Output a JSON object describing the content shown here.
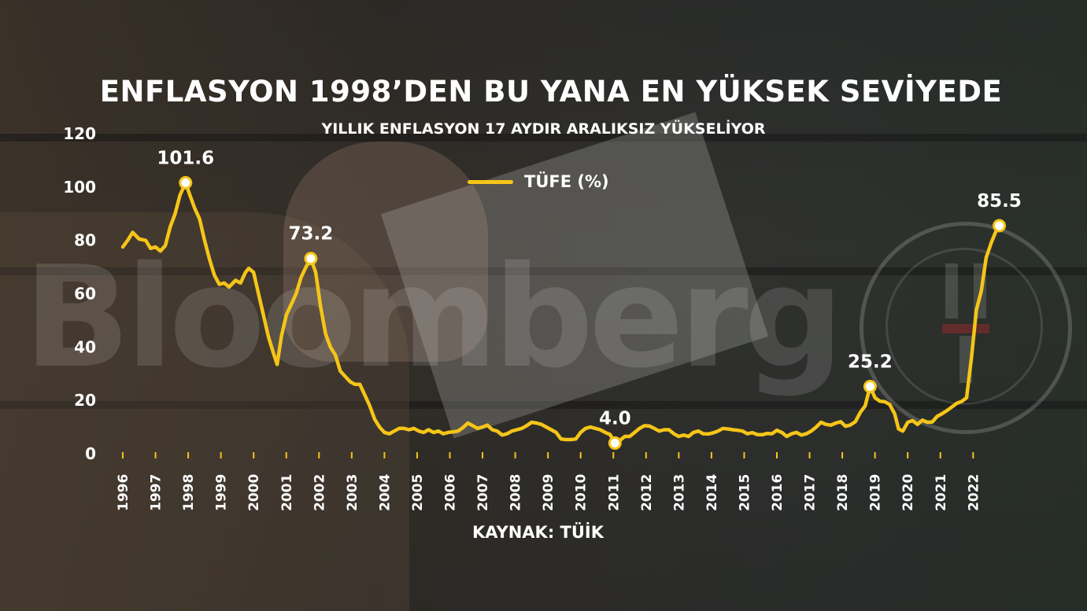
{
  "header": {
    "title": "ENFLASYON 1998’DEN BU YANA EN YÜKSEK SEVİYEDE",
    "subtitle": "YILLIK ENFLASYON 17 AYDIR ARALIKSIZ YÜKSELİYOR"
  },
  "footer": {
    "source": "KAYNAK: TÜİK"
  },
  "watermarks": {
    "bloomberg": "Bloomberg",
    "ht": "HT"
  },
  "colors": {
    "line": "#f5c518",
    "text": "#ffffff"
  },
  "chart_data": {
    "type": "line",
    "ylim": [
      0,
      120
    ],
    "yticks": [
      0,
      20,
      40,
      60,
      80,
      100,
      120
    ],
    "xticks": [
      "1996",
      "1997",
      "1998",
      "1999",
      "2000",
      "2001",
      "2002",
      "2003",
      "2004",
      "2005",
      "2006",
      "2007",
      "2008",
      "2009",
      "2010",
      "2011",
      "2012",
      "2013",
      "2014",
      "2015",
      "2016",
      "2017",
      "2018",
      "2019",
      "2020",
      "2021",
      "2022"
    ],
    "legend": {
      "position": "top-center"
    },
    "series": [
      {
        "name": "TÜFE (%)",
        "points": [
          [
            1996.0,
            77.5
          ],
          [
            1996.15,
            80
          ],
          [
            1996.3,
            83
          ],
          [
            1996.5,
            80.5
          ],
          [
            1996.7,
            80
          ],
          [
            1996.85,
            77
          ],
          [
            1997.0,
            77.5
          ],
          [
            1997.15,
            76
          ],
          [
            1997.3,
            78
          ],
          [
            1997.45,
            85
          ],
          [
            1997.6,
            90
          ],
          [
            1997.75,
            97
          ],
          [
            1997.92,
            101.6
          ],
          [
            1998.05,
            97
          ],
          [
            1998.2,
            92
          ],
          [
            1998.35,
            88
          ],
          [
            1998.5,
            80
          ],
          [
            1998.65,
            73
          ],
          [
            1998.8,
            67
          ],
          [
            1998.95,
            63.5
          ],
          [
            1999.1,
            64
          ],
          [
            1999.25,
            62.5
          ],
          [
            1999.45,
            65
          ],
          [
            1999.6,
            64
          ],
          [
            1999.75,
            68
          ],
          [
            1999.85,
            69.5
          ],
          [
            2000.0,
            68
          ],
          [
            2000.15,
            60
          ],
          [
            2000.3,
            52
          ],
          [
            2000.45,
            44
          ],
          [
            2000.6,
            38
          ],
          [
            2000.72,
            33.5
          ],
          [
            2000.85,
            44
          ],
          [
            2001.0,
            52
          ],
          [
            2001.15,
            56
          ],
          [
            2001.3,
            60
          ],
          [
            2001.45,
            66
          ],
          [
            2001.6,
            70
          ],
          [
            2001.75,
            73.2
          ],
          [
            2001.9,
            68
          ],
          [
            2002.05,
            55
          ],
          [
            2002.2,
            45
          ],
          [
            2002.35,
            40
          ],
          [
            2002.5,
            37
          ],
          [
            2002.65,
            31
          ],
          [
            2002.8,
            29
          ],
          [
            2002.95,
            27
          ],
          [
            2003.1,
            26
          ],
          [
            2003.25,
            26
          ],
          [
            2003.4,
            22
          ],
          [
            2003.55,
            18
          ],
          [
            2003.7,
            13
          ],
          [
            2003.85,
            10
          ],
          [
            2004.0,
            8
          ],
          [
            2004.15,
            7.5
          ],
          [
            2004.3,
            8.5
          ],
          [
            2004.45,
            9.5
          ],
          [
            2004.6,
            9.5
          ],
          [
            2004.75,
            9
          ],
          [
            2004.9,
            9.5
          ],
          [
            2005.05,
            8.5
          ],
          [
            2005.2,
            8
          ],
          [
            2005.35,
            9
          ],
          [
            2005.5,
            8
          ],
          [
            2005.65,
            8.5
          ],
          [
            2005.8,
            7.5
          ],
          [
            2005.95,
            8
          ],
          [
            2006.1,
            8.2
          ],
          [
            2006.25,
            8.5
          ],
          [
            2006.4,
            9.8
          ],
          [
            2006.55,
            11.5
          ],
          [
            2006.7,
            10.5
          ],
          [
            2006.85,
            9.5
          ],
          [
            2007.0,
            10
          ],
          [
            2007.15,
            10.7
          ],
          [
            2007.3,
            9
          ],
          [
            2007.45,
            8.5
          ],
          [
            2007.6,
            7
          ],
          [
            2007.75,
            7.5
          ],
          [
            2007.9,
            8.5
          ],
          [
            2008.05,
            9
          ],
          [
            2008.2,
            9.5
          ],
          [
            2008.35,
            10.5
          ],
          [
            2008.5,
            11.8
          ],
          [
            2008.65,
            11.5
          ],
          [
            2008.8,
            11
          ],
          [
            2008.95,
            10
          ],
          [
            2009.1,
            9
          ],
          [
            2009.25,
            8
          ],
          [
            2009.4,
            5.5
          ],
          [
            2009.55,
            5.3
          ],
          [
            2009.7,
            5.3
          ],
          [
            2009.85,
            5.5
          ],
          [
            2010.0,
            8
          ],
          [
            2010.15,
            9.5
          ],
          [
            2010.3,
            10
          ],
          [
            2010.45,
            9.5
          ],
          [
            2010.6,
            9
          ],
          [
            2010.75,
            8
          ],
          [
            2010.9,
            7.2
          ],
          [
            2011.05,
            4.0
          ],
          [
            2011.2,
            5
          ],
          [
            2011.35,
            6.5
          ],
          [
            2011.5,
            6.5
          ],
          [
            2011.65,
            8
          ],
          [
            2011.8,
            9.5
          ],
          [
            2011.95,
            10.5
          ],
          [
            2012.1,
            10.4
          ],
          [
            2012.25,
            9.5
          ],
          [
            2012.4,
            8.5
          ],
          [
            2012.55,
            9
          ],
          [
            2012.7,
            9
          ],
          [
            2012.85,
            7.5
          ],
          [
            2013.0,
            6.5
          ],
          [
            2013.15,
            7
          ],
          [
            2013.3,
            6.5
          ],
          [
            2013.45,
            8
          ],
          [
            2013.6,
            8.5
          ],
          [
            2013.75,
            7.5
          ],
          [
            2013.9,
            7.4
          ],
          [
            2014.05,
            7.8
          ],
          [
            2014.2,
            8.5
          ],
          [
            2014.35,
            9.5
          ],
          [
            2014.5,
            9.3
          ],
          [
            2014.65,
            9
          ],
          [
            2014.8,
            8.8
          ],
          [
            2014.95,
            8.5
          ],
          [
            2015.1,
            7.5
          ],
          [
            2015.25,
            7.9
          ],
          [
            2015.4,
            7.2
          ],
          [
            2015.55,
            7.1
          ],
          [
            2015.7,
            7.6
          ],
          [
            2015.85,
            7.5
          ],
          [
            2016.0,
            8.8
          ],
          [
            2016.15,
            8
          ],
          [
            2016.3,
            6.5
          ],
          [
            2016.45,
            7.5
          ],
          [
            2016.6,
            8
          ],
          [
            2016.75,
            7
          ],
          [
            2016.9,
            7.5
          ],
          [
            2017.05,
            8.5
          ],
          [
            2017.2,
            10
          ],
          [
            2017.35,
            11.8
          ],
          [
            2017.5,
            11
          ],
          [
            2017.65,
            10.7
          ],
          [
            2017.8,
            11.5
          ],
          [
            2017.95,
            12
          ],
          [
            2018.1,
            10.3
          ],
          [
            2018.25,
            10.8
          ],
          [
            2018.4,
            12
          ],
          [
            2018.55,
            15.5
          ],
          [
            2018.7,
            18
          ],
          [
            2018.85,
            25.2
          ],
          [
            2019.0,
            21
          ],
          [
            2019.15,
            19.7
          ],
          [
            2019.3,
            19.5
          ],
          [
            2019.45,
            18.5
          ],
          [
            2019.6,
            15
          ],
          [
            2019.72,
            9.3
          ],
          [
            2019.85,
            8.5
          ],
          [
            2020.0,
            11.8
          ],
          [
            2020.15,
            12.4
          ],
          [
            2020.3,
            11
          ],
          [
            2020.45,
            12.6
          ],
          [
            2020.6,
            11.8
          ],
          [
            2020.75,
            11.9
          ],
          [
            2020.9,
            14
          ],
          [
            2021.05,
            15
          ],
          [
            2021.2,
            16.2
          ],
          [
            2021.35,
            17.5
          ],
          [
            2021.5,
            18.9
          ],
          [
            2021.65,
            19.6
          ],
          [
            2021.8,
            21
          ],
          [
            2021.95,
            36
          ],
          [
            2022.1,
            54
          ],
          [
            2022.25,
            61
          ],
          [
            2022.4,
            73.5
          ],
          [
            2022.55,
            79
          ],
          [
            2022.7,
            83.5
          ],
          [
            2022.8,
            85.5
          ]
        ]
      }
    ],
    "annotations": [
      {
        "x": 1997.92,
        "y": 101.6,
        "label": "101.6"
      },
      {
        "x": 2001.75,
        "y": 73.2,
        "label": "73.2"
      },
      {
        "x": 2011.05,
        "y": 4.0,
        "label": "4.0"
      },
      {
        "x": 2018.85,
        "y": 25.2,
        "label": "25.2"
      },
      {
        "x": 2022.8,
        "y": 85.5,
        "label": "85.5"
      }
    ]
  }
}
